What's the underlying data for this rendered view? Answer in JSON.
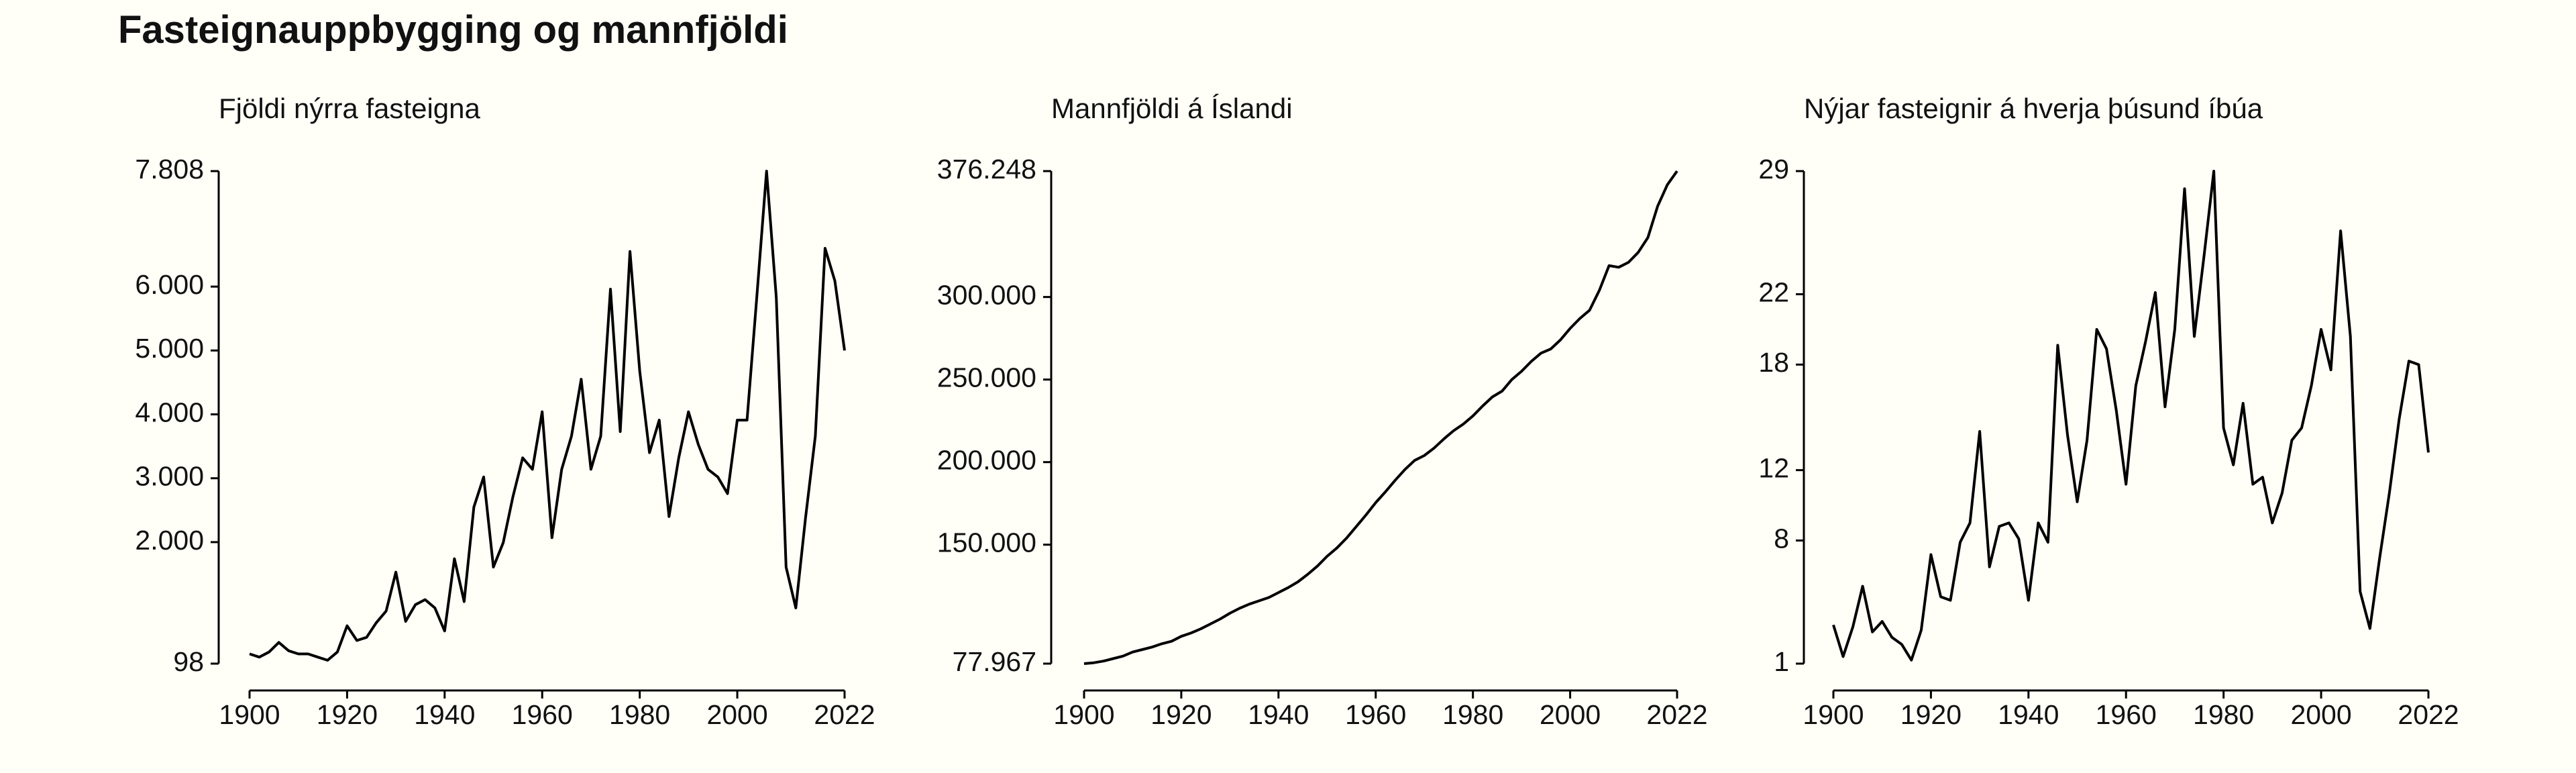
{
  "title": "Fasteignauppbygging og mannfjöldi",
  "chart_data": [
    {
      "type": "line",
      "title": "Fjöldi nýrra fasteigna",
      "color": "#000000",
      "x": [
        1900,
        1902,
        1904,
        1906,
        1908,
        1910,
        1912,
        1914,
        1916,
        1918,
        1920,
        1922,
        1924,
        1926,
        1928,
        1930,
        1932,
        1934,
        1936,
        1938,
        1940,
        1942,
        1944,
        1946,
        1948,
        1950,
        1952,
        1954,
        1956,
        1958,
        1960,
        1962,
        1964,
        1966,
        1968,
        1970,
        1972,
        1974,
        1976,
        1978,
        1980,
        1982,
        1984,
        1986,
        1988,
        1990,
        1992,
        1994,
        1996,
        1998,
        2000,
        2002,
        2004,
        2006,
        2008,
        2010,
        2012,
        2014,
        2016,
        2018,
        2020,
        2022
      ],
      "values": [
        250,
        200,
        280,
        430,
        300,
        250,
        250,
        200,
        150,
        280,
        690,
        460,
        510,
        740,
        920,
        1530,
        760,
        1020,
        1100,
        970,
        610,
        1740,
        1070,
        2550,
        3020,
        1610,
        1990,
        2710,
        3320,
        3140,
        4040,
        2070,
        3140,
        3660,
        4550,
        3140,
        3660,
        5960,
        3730,
        6550,
        4680,
        3400,
        3910,
        2400,
        3320,
        4040,
        3530,
        3140,
        3020,
        2760,
        3910,
        3910,
        5830,
        7808,
        5830,
        1610,
        970,
        2380,
        3660,
        6600,
        6090,
        5000
      ],
      "xlim": [
        1900,
        2022
      ],
      "xticks": [
        1900,
        1920,
        1940,
        1960,
        1980,
        2000,
        2022
      ],
      "ylim": [
        98,
        7808
      ],
      "yticks": [
        98,
        {
          "value": 2000,
          "label": "2.000"
        },
        {
          "value": 3000,
          "label": "3.000"
        },
        {
          "value": 4000,
          "label": "4.000"
        },
        {
          "value": 5000,
          "label": "5.000"
        },
        {
          "value": 6000,
          "label": "6.000"
        },
        {
          "value": 7808,
          "label": "7.808"
        }
      ]
    },
    {
      "type": "line",
      "title": "Mannfjöldi á Íslandi",
      "color": "#000000",
      "x": [
        1900,
        1902,
        1904,
        1906,
        1908,
        1910,
        1912,
        1914,
        1916,
        1918,
        1920,
        1922,
        1924,
        1926,
        1928,
        1930,
        1932,
        1934,
        1936,
        1938,
        1940,
        1942,
        1944,
        1946,
        1948,
        1950,
        1952,
        1954,
        1956,
        1958,
        1960,
        1962,
        1964,
        1966,
        1968,
        1970,
        1972,
        1974,
        1976,
        1978,
        1980,
        1982,
        1984,
        1986,
        1988,
        1990,
        1992,
        1994,
        1996,
        1998,
        2000,
        2002,
        2004,
        2006,
        2008,
        2010,
        2012,
        2014,
        2016,
        2018,
        2020,
        2022
      ],
      "values": [
        77967,
        78500,
        79500,
        81000,
        82500,
        85000,
        86500,
        88000,
        90000,
        91500,
        94500,
        96500,
        99000,
        102000,
        105000,
        108500,
        111500,
        114000,
        116000,
        118000,
        121000,
        124000,
        127500,
        132000,
        137000,
        143000,
        148000,
        154000,
        161000,
        168000,
        175500,
        182000,
        189000,
        195500,
        201000,
        204000,
        208500,
        214000,
        219000,
        223000,
        228000,
        234000,
        239500,
        243000,
        250000,
        255000,
        261000,
        266000,
        268500,
        274000,
        281000,
        287000,
        292000,
        304000,
        319000,
        318000,
        321000,
        327000,
        336000,
        355000,
        368000,
        376248
      ],
      "xlim": [
        1900,
        2022
      ],
      "xticks": [
        1900,
        1920,
        1940,
        1960,
        1980,
        2000,
        2022
      ],
      "ylim": [
        77967,
        376248
      ],
      "yticks": [
        {
          "value": 77967,
          "label": "77.967"
        },
        {
          "value": 150000,
          "label": "150.000"
        },
        {
          "value": 200000,
          "label": "200.000"
        },
        {
          "value": 250000,
          "label": "250.000"
        },
        {
          "value": 300000,
          "label": "300.000"
        },
        {
          "value": 376248,
          "label": "376.248"
        }
      ]
    },
    {
      "type": "line",
      "title": "Nýjar fasteignir á hverja þúsund íbúa",
      "color": "#000000",
      "x": [
        1900,
        1902,
        1904,
        1906,
        1908,
        1910,
        1912,
        1914,
        1916,
        1918,
        1920,
        1922,
        1924,
        1926,
        1928,
        1930,
        1932,
        1934,
        1936,
        1938,
        1940,
        1942,
        1944,
        1946,
        1948,
        1950,
        1952,
        1954,
        1956,
        1958,
        1960,
        1962,
        1964,
        1966,
        1968,
        1970,
        1972,
        1974,
        1976,
        1978,
        1980,
        1982,
        1984,
        1986,
        1988,
        1990,
        1992,
        1994,
        1996,
        1998,
        2000,
        2002,
        2004,
        2006,
        2008,
        2010,
        2012,
        2014,
        2016,
        2018,
        2020,
        2022
      ],
      "values": [
        3.2,
        1.4,
        3.1,
        5.4,
        2.8,
        3.4,
        2.5,
        2.1,
        1.2,
        2.9,
        7.2,
        4.8,
        4.6,
        7.9,
        9.0,
        14.2,
        6.5,
        8.8,
        9.0,
        8.1,
        4.6,
        9.0,
        7.9,
        19.1,
        14.0,
        10.2,
        13.7,
        20.0,
        18.9,
        15.4,
        11.2,
        16.8,
        19.3,
        22.1,
        15.6,
        20.0,
        28.0,
        19.6,
        24.2,
        29.0,
        14.4,
        12.3,
        15.8,
        11.2,
        11.6,
        9.0,
        10.7,
        13.7,
        14.4,
        16.8,
        20.0,
        17.7,
        25.6,
        19.6,
        5.1,
        3.0,
        7.0,
        10.7,
        14.9,
        18.2,
        18.0,
        13.0
      ],
      "xlim": [
        1900,
        2022
      ],
      "xticks": [
        1900,
        1920,
        1940,
        1960,
        1980,
        2000,
        2022
      ],
      "ylim": [
        1,
        29
      ],
      "yticks": [
        1,
        8,
        12,
        18,
        22,
        29
      ]
    }
  ]
}
